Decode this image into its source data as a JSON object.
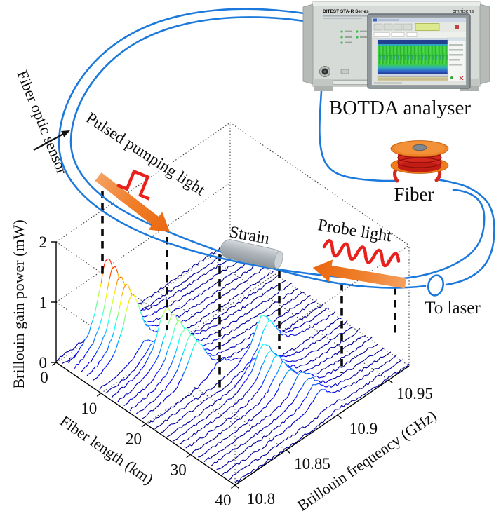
{
  "figure": {
    "labels": {
      "fiber_optic_sensor": "Fiber optic sensor",
      "pulsed_pumping_light": "Pulsed pumping light",
      "strain": "Strain",
      "probe_light": "Probe light",
      "to_laser": "To laser",
      "fiber": "Fiber",
      "botda_analyser": "BOTDA analyser"
    },
    "instrument": {
      "model": "DITEST STA-R Series",
      "brand": "omnisens"
    },
    "colors": {
      "fiber_blue": "#1b79dc",
      "arrow_orange": "#ee7420",
      "signal_red": "#e8211d",
      "spool_orange": "#ef8325",
      "coil_red": "#d5281e",
      "strain_gray": "#aeb6bb"
    }
  },
  "chart_data": {
    "type": "line",
    "variant": "3d-waterfall",
    "title": "",
    "xlabel": "Brillouin frequency (GHz)",
    "ylabel": "Fiber length (km)",
    "zlabel": "Brillouin gain power (mW)",
    "x_ticks": [
      10.8,
      10.85,
      10.9,
      10.95
    ],
    "x_range": [
      10.8,
      10.97
    ],
    "y_ticks": [
      0,
      10,
      20,
      30,
      40
    ],
    "y_range": [
      0,
      40
    ],
    "z_ticks": [
      0,
      1,
      2
    ],
    "z_range": [
      0,
      2
    ],
    "grid": true,
    "n_traces": 30,
    "freq_step": 0.002,
    "peak_hwhm_ghz": 0.011,
    "baseline_mw": 0.03,
    "noise_mw": 0.05,
    "colormap": "jet",
    "color_scale_max_mw": 1.6,
    "segments": [
      {
        "len_range": [
          0,
          2
        ],
        "center_ghz": 10.84,
        "height_start_mw": 0.07,
        "height_end_mw": 0.07
      },
      {
        "len_range": [
          2,
          9.5
        ],
        "center_ghz": 10.838,
        "height_start_mw": 1.45,
        "height_end_mw": 1.0
      },
      {
        "len_range": [
          9.5,
          11.5
        ],
        "center_ghz": 10.845,
        "height_start_mw": 0.3,
        "height_end_mw": 0.3
      },
      {
        "len_range": [
          11.5,
          19.5
        ],
        "center_ghz": 10.853,
        "height_start_mw": 0.92,
        "height_end_mw": 0.66
      },
      {
        "len_range": [
          19.5,
          21
        ],
        "center_ghz": 10.87,
        "height_start_mw": 0.25,
        "height_end_mw": 0.25
      },
      {
        "len_range": [
          21,
          24.5
        ],
        "center_ghz": 10.905,
        "height_start_mw": 0.68,
        "height_end_mw": 0.6
      },
      {
        "len_range": [
          24.5,
          26
        ],
        "center_ghz": 10.885,
        "height_start_mw": 0.3,
        "height_end_mw": 0.3
      },
      {
        "len_range": [
          26,
          32
        ],
        "center_ghz": 10.888,
        "height_start_mw": 0.6,
        "height_end_mw": 0.42
      },
      {
        "len_range": [
          32,
          38.5
        ],
        "center_ghz": 10.895,
        "height_start_mw": 0.42,
        "height_end_mw": 0.25
      },
      {
        "len_range": [
          38.5,
          40
        ],
        "center_ghz": 10.9,
        "height_start_mw": 0.07,
        "height_end_mw": 0.07
      }
    ]
  }
}
